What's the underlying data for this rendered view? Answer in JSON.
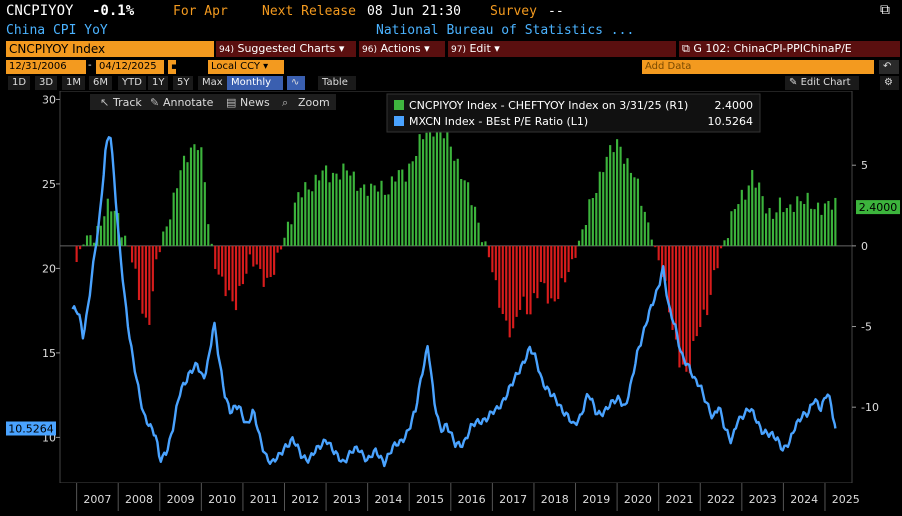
{
  "header": {
    "ticker": "CNCPIYOY",
    "change": "-0.1%",
    "period": "For Apr",
    "next_release_label": "Next Release",
    "next_release_value": "08 Jun 21:30",
    "survey_label": "Survey",
    "survey_value": "--",
    "subtitle": "China CPI YoY",
    "source": "National Bureau of Statistics ..."
  },
  "toolbar": {
    "security": "CNCPIYOY Index",
    "suggested_prefix": "94)",
    "suggested": "Suggested Charts",
    "actions_prefix": "96)",
    "actions": "Actions",
    "edit_prefix": "97)",
    "edit": "Edit",
    "chart_name": "G 102: ChinaCPI-PPIChinaP/E"
  },
  "range": {
    "start": "12/31/2006",
    "end": "04/12/2025",
    "currency": "Local CCY",
    "add_data": "Add Data",
    "edit_chart": "Edit Chart"
  },
  "periods": [
    "1D",
    "3D",
    "1M",
    "6M",
    "YTD",
    "1Y",
    "5Y",
    "Max"
  ],
  "frequency": "Monthly",
  "table_label": "Table",
  "tools": {
    "track": "Track",
    "annotate": "Annotate",
    "news": "News",
    "zoom": "Zoom"
  },
  "legend": [
    {
      "label": "CNCPIYOY Index - CHEFTYOY Index on 3/31/25 (R1)",
      "value": "2.4000",
      "color": "#3fb53f"
    },
    {
      "label": "MXCN Index - BEst P/E Ratio (L1)",
      "value": "10.5264",
      "color": "#4aa3ff"
    }
  ],
  "last_labels": {
    "right": "2.4000",
    "left": "10.5264"
  },
  "colors": {
    "bar_pos": "#3cb43c",
    "bar_neg": "#d81c1c",
    "line": "#4aa3ff",
    "accent": "#f39a1f"
  },
  "chart_data": {
    "type": "bar",
    "x_labels": [
      "2007",
      "2008",
      "2009",
      "2010",
      "2011",
      "2012",
      "2013",
      "2014",
      "2015",
      "2016",
      "2017",
      "2018",
      "2019",
      "2020",
      "2021",
      "2022",
      "2023",
      "2024",
      "2025"
    ],
    "left_axis": {
      "ticks": [
        10,
        15,
        20,
        25,
        30
      ],
      "range": [
        7.3,
        30.5
      ]
    },
    "right_axis": {
      "ticks": [
        -10,
        -5,
        0,
        5
      ],
      "range": [
        -14.7,
        9.6
      ]
    },
    "series": [
      {
        "name": "CNCPIYOY Index - CHEFTYOY Index on 3/31/25 (R1)",
        "axis": "right",
        "anchors": [
          [
            2007.0,
            -1.0
          ],
          [
            2007.2,
            0.4
          ],
          [
            2007.5,
            1.0
          ],
          [
            2007.8,
            2.5
          ],
          [
            2008.0,
            2.0
          ],
          [
            2008.1,
            1.0
          ],
          [
            2008.3,
            -0.5
          ],
          [
            2008.5,
            -3.0
          ],
          [
            2008.7,
            -5.0
          ],
          [
            2008.8,
            -4.0
          ],
          [
            2008.9,
            -1.5
          ],
          [
            2009.1,
            1.0
          ],
          [
            2009.3,
            2.5
          ],
          [
            2009.5,
            4.5
          ],
          [
            2009.7,
            6.0
          ],
          [
            2009.9,
            6.5
          ],
          [
            2010.0,
            5.5
          ],
          [
            2010.1,
            3.5
          ],
          [
            2010.2,
            0.5
          ],
          [
            2010.4,
            -1.5
          ],
          [
            2010.6,
            -3.0
          ],
          [
            2010.8,
            -3.8
          ],
          [
            2010.9,
            -2.8
          ],
          [
            2011.0,
            -2.0
          ],
          [
            2011.2,
            -1.0
          ],
          [
            2011.4,
            -1.5
          ],
          [
            2011.6,
            -2.2
          ],
          [
            2011.8,
            -1.5
          ],
          [
            2011.9,
            -0.3
          ],
          [
            2012.1,
            1.5
          ],
          [
            2012.3,
            2.8
          ],
          [
            2012.5,
            3.5
          ],
          [
            2012.7,
            4.0
          ],
          [
            2012.9,
            4.5
          ],
          [
            2013.1,
            4.3
          ],
          [
            2013.3,
            4.7
          ],
          [
            2013.5,
            4.6
          ],
          [
            2013.7,
            4.0
          ],
          [
            2013.9,
            3.7
          ],
          [
            2014.1,
            3.3
          ],
          [
            2014.3,
            3.8
          ],
          [
            2014.5,
            3.5
          ],
          [
            2014.7,
            4.3
          ],
          [
            2014.9,
            4.5
          ],
          [
            2015.0,
            5.0
          ],
          [
            2015.2,
            6.0
          ],
          [
            2015.4,
            7.0
          ],
          [
            2015.6,
            7.5
          ],
          [
            2015.8,
            7.0
          ],
          [
            2016.0,
            6.2
          ],
          [
            2016.2,
            5.0
          ],
          [
            2016.4,
            3.5
          ],
          [
            2016.6,
            2.0
          ],
          [
            2016.8,
            0.5
          ],
          [
            2016.95,
            -1.0
          ],
          [
            2017.1,
            -3.0
          ],
          [
            2017.3,
            -4.5
          ],
          [
            2017.5,
            -5.5
          ],
          [
            2017.7,
            -3.5
          ],
          [
            2017.9,
            -4.0
          ],
          [
            2018.0,
            -3.2
          ],
          [
            2018.2,
            -2.5
          ],
          [
            2018.4,
            -3.5
          ],
          [
            2018.6,
            -2.8
          ],
          [
            2018.8,
            -2.0
          ],
          [
            2018.95,
            -1.0
          ],
          [
            2019.1,
            0.5
          ],
          [
            2019.3,
            2.0
          ],
          [
            2019.5,
            3.5
          ],
          [
            2019.7,
            5.5
          ],
          [
            2019.9,
            6.0
          ],
          [
            2020.05,
            6.2
          ],
          [
            2020.2,
            5.5
          ],
          [
            2020.4,
            4.5
          ],
          [
            2020.6,
            2.5
          ],
          [
            2020.8,
            1.0
          ],
          [
            2020.95,
            -0.5
          ],
          [
            2021.1,
            -2.0
          ],
          [
            2021.3,
            -4.5
          ],
          [
            2021.5,
            -7.0
          ],
          [
            2021.7,
            -8.5
          ],
          [
            2021.85,
            -6.0
          ],
          [
            2022.0,
            -4.5
          ],
          [
            2022.2,
            -4.0
          ],
          [
            2022.3,
            -2.5
          ],
          [
            2022.45,
            -0.5
          ],
          [
            2022.6,
            0.5
          ],
          [
            2022.8,
            2.0
          ],
          [
            2022.95,
            2.8
          ],
          [
            2023.1,
            3.5
          ],
          [
            2023.25,
            4.5
          ],
          [
            2023.4,
            3.5
          ],
          [
            2023.55,
            2.5
          ],
          [
            2023.7,
            2.0
          ],
          [
            2023.9,
            2.5
          ],
          [
            2024.1,
            2.0
          ],
          [
            2024.3,
            3.0
          ],
          [
            2024.5,
            2.8
          ],
          [
            2024.7,
            2.3
          ],
          [
            2024.9,
            2.6
          ],
          [
            2025.2,
            2.4
          ]
        ]
      },
      {
        "name": "MXCN Index - BEst P/E Ratio (L1)",
        "axis": "left",
        "anchors": [
          [
            2006.9,
            17.6
          ],
          [
            2007.05,
            17.3
          ],
          [
            2007.15,
            16.0
          ],
          [
            2007.25,
            17.4
          ],
          [
            2007.4,
            20.2
          ],
          [
            2007.55,
            22.8
          ],
          [
            2007.7,
            27.2
          ],
          [
            2007.8,
            28.3
          ],
          [
            2007.9,
            25.4
          ],
          [
            2008.0,
            22.0
          ],
          [
            2008.15,
            18.5
          ],
          [
            2008.3,
            15.5
          ],
          [
            2008.45,
            13.2
          ],
          [
            2008.6,
            11.5
          ],
          [
            2008.75,
            10.8
          ],
          [
            2008.9,
            10.0
          ],
          [
            2009.0,
            8.6
          ],
          [
            2009.15,
            9.2
          ],
          [
            2009.3,
            10.3
          ],
          [
            2009.5,
            12.8
          ],
          [
            2009.7,
            13.8
          ],
          [
            2009.9,
            14.2
          ],
          [
            2010.05,
            13.5
          ],
          [
            2010.2,
            15.0
          ],
          [
            2010.3,
            16.8
          ],
          [
            2010.4,
            15.0
          ],
          [
            2010.55,
            12.8
          ],
          [
            2010.7,
            11.5
          ],
          [
            2010.9,
            11.8
          ],
          [
            2011.1,
            10.8
          ],
          [
            2011.25,
            11.5
          ],
          [
            2011.4,
            10.0
          ],
          [
            2011.55,
            9.0
          ],
          [
            2011.7,
            8.4
          ],
          [
            2011.85,
            8.8
          ],
          [
            2012.0,
            9.5
          ],
          [
            2012.2,
            9.8
          ],
          [
            2012.4,
            9.0
          ],
          [
            2012.6,
            8.7
          ],
          [
            2012.8,
            9.3
          ],
          [
            2013.0,
            10.0
          ],
          [
            2013.2,
            9.0
          ],
          [
            2013.4,
            8.6
          ],
          [
            2013.6,
            9.1
          ],
          [
            2013.8,
            9.3
          ],
          [
            2014.0,
            8.7
          ],
          [
            2014.2,
            9.1
          ],
          [
            2014.4,
            8.6
          ],
          [
            2014.6,
            9.3
          ],
          [
            2014.8,
            9.8
          ],
          [
            2015.0,
            10.5
          ],
          [
            2015.15,
            11.5
          ],
          [
            2015.3,
            13.8
          ],
          [
            2015.45,
            15.5
          ],
          [
            2015.6,
            12.0
          ],
          [
            2015.75,
            10.5
          ],
          [
            2015.9,
            10.8
          ],
          [
            2016.1,
            9.5
          ],
          [
            2016.3,
            9.7
          ],
          [
            2016.5,
            10.6
          ],
          [
            2016.7,
            11.0
          ],
          [
            2016.9,
            11.2
          ],
          [
            2017.1,
            11.6
          ],
          [
            2017.3,
            12.4
          ],
          [
            2017.5,
            13.2
          ],
          [
            2017.7,
            14.3
          ],
          [
            2017.9,
            15.2
          ],
          [
            2018.05,
            14.6
          ],
          [
            2018.2,
            13.4
          ],
          [
            2018.4,
            12.5
          ],
          [
            2018.6,
            12.0
          ],
          [
            2018.8,
            11.3
          ],
          [
            2018.95,
            10.6
          ],
          [
            2019.1,
            11.2
          ],
          [
            2019.3,
            12.6
          ],
          [
            2019.5,
            11.4
          ],
          [
            2019.7,
            11.6
          ],
          [
            2019.9,
            12.0
          ],
          [
            2020.05,
            12.4
          ],
          [
            2020.2,
            11.8
          ],
          [
            2020.35,
            13.2
          ],
          [
            2020.5,
            15.2
          ],
          [
            2020.7,
            16.8
          ],
          [
            2020.85,
            17.8
          ],
          [
            2021.0,
            19.0
          ],
          [
            2021.1,
            20.2
          ],
          [
            2021.25,
            17.5
          ],
          [
            2021.4,
            16.5
          ],
          [
            2021.55,
            15.0
          ],
          [
            2021.7,
            14.2
          ],
          [
            2021.85,
            13.4
          ],
          [
            2022.0,
            13.2
          ],
          [
            2022.15,
            12.0
          ],
          [
            2022.3,
            11.0
          ],
          [
            2022.45,
            12.0
          ],
          [
            2022.6,
            10.5
          ],
          [
            2022.75,
            9.6
          ],
          [
            2022.9,
            11.1
          ],
          [
            2023.05,
            11.4
          ],
          [
            2023.2,
            11.6
          ],
          [
            2023.35,
            11.1
          ],
          [
            2023.5,
            10.4
          ],
          [
            2023.65,
            10.1
          ],
          [
            2023.85,
            10.0
          ],
          [
            2024.0,
            9.3
          ],
          [
            2024.15,
            9.6
          ],
          [
            2024.3,
            10.8
          ],
          [
            2024.45,
            11.4
          ],
          [
            2024.6,
            11.3
          ],
          [
            2024.75,
            12.3
          ],
          [
            2024.9,
            11.8
          ],
          [
            2025.05,
            12.6
          ],
          [
            2025.15,
            11.8
          ],
          [
            2025.25,
            10.53
          ]
        ]
      }
    ]
  }
}
